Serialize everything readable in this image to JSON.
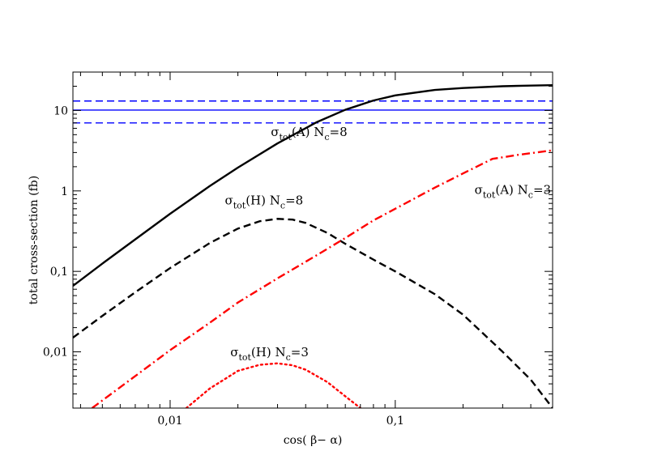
{
  "chart_data": {
    "type": "line",
    "xlabel": "cos( β− α)",
    "ylabel": "total cross-section (fb)",
    "xscale": "log",
    "yscale": "log",
    "xlim": [
      0.0037,
      0.5
    ],
    "ylim": [
      0.002,
      30
    ],
    "x_ticks": [
      {
        "value": 0.01,
        "label": "0,01"
      },
      {
        "value": 0.1,
        "label": "0,1"
      }
    ],
    "y_ticks": [
      {
        "value": 0.01,
        "label": "0,01"
      },
      {
        "value": 0.1,
        "label": "0,1"
      },
      {
        "value": 1,
        "label": "1"
      },
      {
        "value": 10,
        "label": "10"
      }
    ],
    "reference_lines": [
      {
        "name": "reference-central",
        "y": 10.1,
        "color": "#0000ff",
        "dash": "solid"
      },
      {
        "name": "reference-upper",
        "y": 13.1,
        "color": "#0000ff",
        "dash": "dashed"
      },
      {
        "name": "reference-lower",
        "y": 7.0,
        "color": "#0000ff",
        "dash": "dashed"
      }
    ],
    "series": [
      {
        "name": "sigma-A-Nc8",
        "color": "#000000",
        "dash": "solid",
        "x": [
          0.0037,
          0.005,
          0.007,
          0.01,
          0.015,
          0.02,
          0.03,
          0.045,
          0.06,
          0.08,
          0.1,
          0.15,
          0.2,
          0.3,
          0.4,
          0.5
        ],
        "y": [
          0.066,
          0.125,
          0.25,
          0.52,
          1.15,
          1.95,
          3.9,
          7.2,
          10.2,
          13.3,
          15.4,
          18.0,
          19.0,
          20.0,
          20.4,
          20.6
        ]
      },
      {
        "name": "sigma-H-Nc8",
        "color": "#000000",
        "dash": "dashed",
        "x": [
          0.0037,
          0.005,
          0.007,
          0.01,
          0.015,
          0.02,
          0.025,
          0.03,
          0.035,
          0.04,
          0.05,
          0.06,
          0.08,
          0.1,
          0.15,
          0.2,
          0.3,
          0.4,
          0.5
        ],
        "y": [
          0.015,
          0.028,
          0.055,
          0.11,
          0.225,
          0.34,
          0.42,
          0.45,
          0.44,
          0.4,
          0.3,
          0.22,
          0.14,
          0.1,
          0.052,
          0.029,
          0.01,
          0.0045,
          0.002
        ]
      },
      {
        "name": "sigma-A-Nc3",
        "color": "#ff0000",
        "dash": "dashdot",
        "x": [
          0.0045,
          0.007,
          0.01,
          0.015,
          0.02,
          0.03,
          0.045,
          0.06,
          0.08,
          0.1,
          0.15,
          0.2,
          0.27,
          0.35,
          0.5
        ],
        "y": [
          0.002,
          0.005,
          0.0105,
          0.023,
          0.041,
          0.082,
          0.16,
          0.26,
          0.43,
          0.6,
          1.1,
          1.65,
          2.5,
          2.8,
          3.2
        ]
      },
      {
        "name": "sigma-H-Nc3",
        "color": "#ff0000",
        "dash": "dotted",
        "x": [
          0.0118,
          0.015,
          0.02,
          0.025,
          0.03,
          0.035,
          0.04,
          0.05,
          0.06,
          0.07
        ],
        "y": [
          0.002,
          0.0035,
          0.0058,
          0.0069,
          0.0072,
          0.0068,
          0.006,
          0.0042,
          0.0028,
          0.002
        ]
      }
    ],
    "annotations": [
      {
        "name": "annotation-sigma-A-Nc8",
        "parts": [
          "σ",
          "tot",
          "(A) N",
          "c",
          "=8"
        ],
        "x": 0.028,
        "y": 4.8
      },
      {
        "name": "annotation-sigma-A-Nc3",
        "parts": [
          "σ",
          "tot",
          "(A) N",
          "c",
          "=3"
        ],
        "x": 0.225,
        "y": 0.92
      },
      {
        "name": "annotation-sigma-H-Nc8",
        "parts": [
          "σ",
          "tot",
          "(H) N",
          "c",
          "=8"
        ],
        "x": 0.0175,
        "y": 0.68
      },
      {
        "name": "annotation-sigma-H-Nc3",
        "parts": [
          "σ",
          "tot",
          "(H) N",
          "c",
          "=3"
        ],
        "x": 0.0185,
        "y": 0.0088
      }
    ]
  }
}
